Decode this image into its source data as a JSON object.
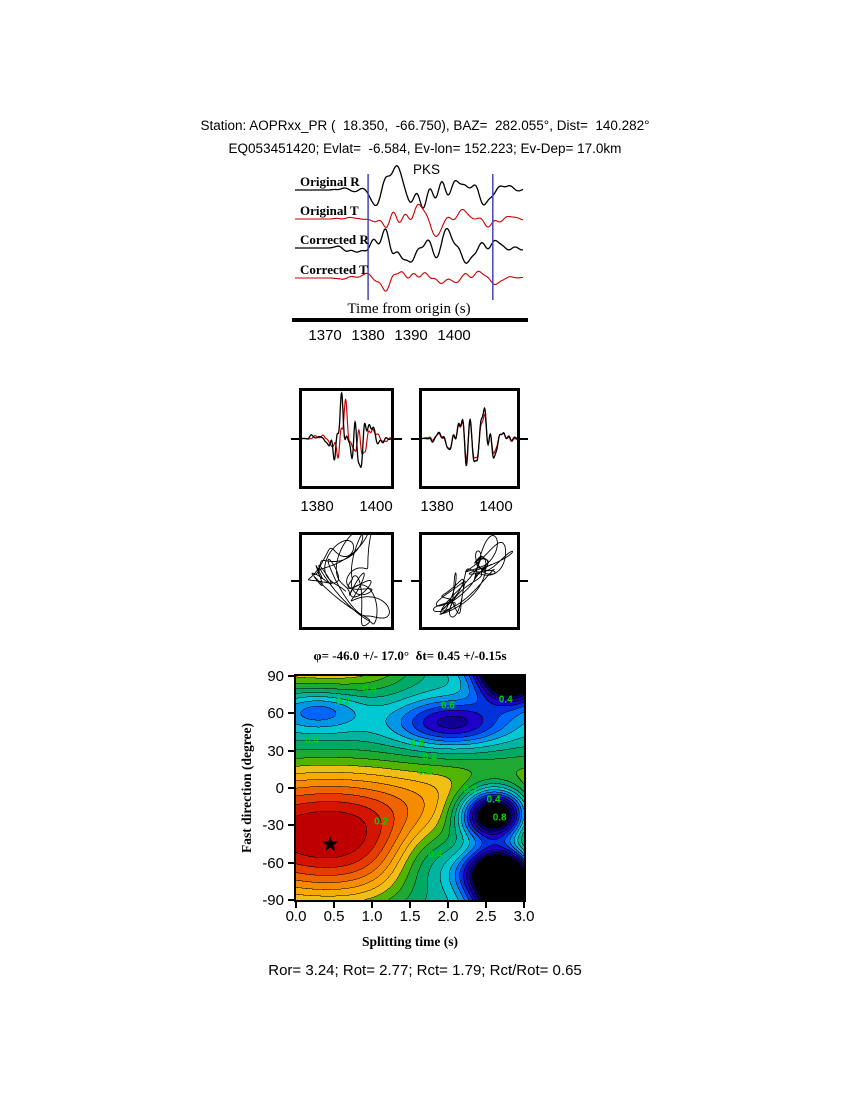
{
  "header": {
    "line1": "Station: AOPRxx_PR (  18.350,  -66.750), BAZ=  282.055°, Dist=  140.282°",
    "line2": "EQ053451420; Evlat=  -6.584, Ev-lon= 152.223; Ev-Dep= 17.0km"
  },
  "waveform_section": {
    "phase_label": "PKS",
    "trace_labels": [
      "Original R",
      "Original T",
      "Corrected R",
      "Corrected T"
    ],
    "axis_label": "Time from origin (s)",
    "tick_labels": [
      "1370",
      "1380",
      "1390",
      "1400"
    ],
    "window_markers_s": [
      1380,
      1409
    ]
  },
  "window_panels": {
    "tick_labels_left": [
      "1380",
      "1400"
    ],
    "tick_labels_right": [
      "1380",
      "1400"
    ]
  },
  "contour_section": {
    "title": "φ= -46.0 +/- 17.0°  δt= 0.45 +/-0.15s",
    "xlabel": "Splitting time (s)",
    "ylabel": "Fast direction (degree)",
    "xtick_labels": [
      "0.0",
      "0.5",
      "1.0",
      "1.5",
      "2.0",
      "2.5",
      "3.0"
    ],
    "ytick_labels": [
      "90",
      "60",
      "30",
      "0",
      "-30",
      "-60",
      "-90"
    ],
    "star_marker": {
      "t": 0.45,
      "phi": -46
    },
    "star_glyph": "★",
    "contour_annotations": [
      {
        "value": "0.4",
        "t": 0.97,
        "phi": 79
      },
      {
        "value": "0.2",
        "t": 0.62,
        "phi": 69
      },
      {
        "value": "0.6",
        "t": 2.0,
        "phi": 66
      },
      {
        "value": "0.4",
        "t": 2.76,
        "phi": 71
      },
      {
        "value": "0.4",
        "t": 0.21,
        "phi": 38
      },
      {
        "value": "0.6",
        "t": 1.6,
        "phi": 35
      },
      {
        "value": "0.4",
        "t": 1.76,
        "phi": 24
      },
      {
        "value": "0.2",
        "t": 1.7,
        "phi": 13
      },
      {
        "value": "0.2",
        "t": 2.29,
        "phi": -2
      },
      {
        "value": "0.4",
        "t": 2.6,
        "phi": -10
      },
      {
        "value": "0.8",
        "t": 2.68,
        "phi": -24
      },
      {
        "value": "0.4",
        "t": 1.83,
        "phi": -54
      },
      {
        "value": "0.2",
        "t": 1.12,
        "phi": -27
      }
    ]
  },
  "footer": {
    "stats_line": "Ror= 3.24; Rot= 2.77; Rct= 1.79; Rct/Rot= 0.65"
  },
  "colors": {
    "trace_primary": "#000000",
    "trace_secondary": "#cc0000",
    "pick_marker": "#4444bb",
    "phase_label": "#e00000",
    "annotation_green": "#00d200"
  },
  "chart_data": [
    {
      "type": "line",
      "name": "seismogram-traces",
      "title": "PKS radial/transverse seismograms, original and corrected",
      "xlabel": "Time from origin (s)",
      "x_ticks": [
        1370,
        1380,
        1390,
        1400
      ],
      "x_range": [
        1365,
        1416
      ],
      "series": [
        {
          "name": "Original R",
          "color": "#000000"
        },
        {
          "name": "Original T",
          "color": "#cc0000"
        },
        {
          "name": "Corrected R",
          "color": "#000000"
        },
        {
          "name": "Corrected T",
          "color": "#cc0000"
        }
      ],
      "phase": "PKS",
      "window_markers_s": [
        1380,
        1409
      ]
    },
    {
      "type": "line",
      "name": "windowed-waveform-overlay",
      "title": "Windowed fast/slow waveform pairs (black/red), before and after correction",
      "panels": [
        {
          "x_ticks": [
            1380,
            1400
          ]
        },
        {
          "x_ticks": [
            1380,
            1400
          ]
        }
      ]
    },
    {
      "type": "scatter",
      "name": "particle-motion",
      "title": "Particle motion, original (left) and corrected (right)",
      "panels": [
        "original",
        "corrected"
      ]
    },
    {
      "type": "heatmap",
      "name": "splitting-parameter-misfit",
      "title": "Misfit contour map of splitting parameters",
      "xlabel": "Splitting time (s)",
      "ylabel": "Fast direction (degree)",
      "xlim": [
        0.0,
        3.0
      ],
      "ylim": [
        -90,
        90
      ],
      "x_ticks": [
        0.0,
        0.5,
        1.0,
        1.5,
        2.0,
        2.5,
        3.0
      ],
      "y_ticks": [
        90,
        60,
        30,
        0,
        -30,
        -60,
        -90
      ],
      "contour_interval": 0.05,
      "labeled_contour_levels": [
        0.2,
        0.4,
        0.6,
        0.8
      ],
      "best_fit": {
        "fast_direction_deg": -46.0,
        "fast_direction_err_deg": 17.0,
        "delay_time_s": 0.45,
        "delay_time_err_s": 0.15
      },
      "star_location": [
        0.45,
        -46.0
      ],
      "legend_position": "none",
      "grid": false
    },
    {
      "type": "table",
      "name": "quality-stats",
      "values": {
        "Ror": 3.24,
        "Rot": 2.77,
        "Rct": 1.79,
        "Rct/Rot": 0.65
      }
    }
  ]
}
